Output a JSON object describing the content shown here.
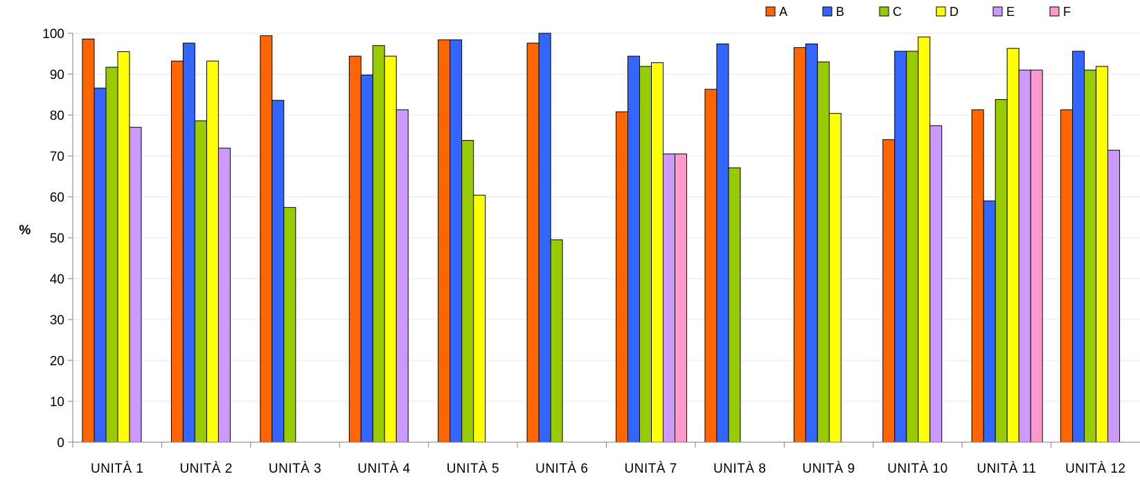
{
  "chart_data": {
    "type": "bar",
    "title": "",
    "xlabel": "",
    "ylabel": "%",
    "ylim": [
      0,
      100
    ],
    "yticks": [
      0,
      10,
      20,
      30,
      40,
      50,
      60,
      70,
      80,
      90,
      100
    ],
    "grid": true,
    "legend_position": "top-right",
    "categories": [
      "UNITÀ 1",
      "UNITÀ 2",
      "UNITÀ 3",
      "UNITÀ 4",
      "UNITÀ 5",
      "UNITÀ 6",
      "UNITÀ 7",
      "UNITÀ 8",
      "UNITÀ 9",
      "UNITÀ 10",
      "UNITÀ 11",
      "UNITÀ 12"
    ],
    "series": [
      {
        "name": "A",
        "color": "#FF6600",
        "values": [
          98.6,
          93.2,
          99.4,
          94.4,
          98.4,
          97.6,
          80.8,
          86.3,
          96.5,
          74.0,
          81.3,
          81.3
        ]
      },
      {
        "name": "B",
        "color": "#3366FF",
        "values": [
          86.6,
          97.6,
          83.6,
          89.8,
          98.4,
          100.0,
          94.4,
          97.4,
          97.4,
          95.6,
          59.0,
          95.6
        ]
      },
      {
        "name": "C",
        "color": "#99CC00",
        "values": [
          91.7,
          78.6,
          57.4,
          97.0,
          73.8,
          49.5,
          91.9,
          67.1,
          93.0,
          95.6,
          83.8,
          91.0
        ]
      },
      {
        "name": "D",
        "color": "#FFFF00",
        "values": [
          95.5,
          93.2,
          null,
          94.4,
          60.4,
          null,
          92.8,
          null,
          80.4,
          99.1,
          96.3,
          91.9
        ]
      },
      {
        "name": "E",
        "color": "#CC99FF",
        "values": [
          77.0,
          71.9,
          null,
          81.3,
          null,
          null,
          70.5,
          null,
          null,
          77.4,
          91.0,
          71.4
        ]
      },
      {
        "name": "F",
        "color": "#FF99CC",
        "values": [
          null,
          null,
          null,
          null,
          null,
          null,
          70.5,
          null,
          null,
          null,
          91.0,
          null
        ]
      }
    ]
  }
}
